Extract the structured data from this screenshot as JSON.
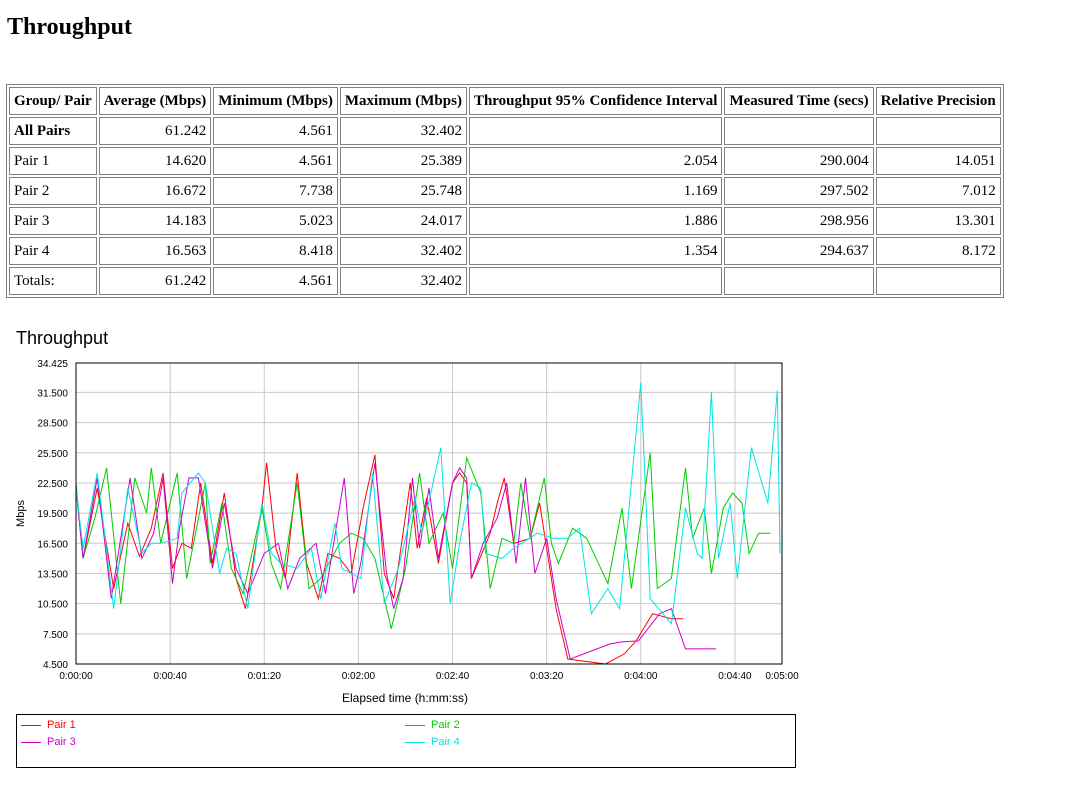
{
  "page": {
    "title": "Throughput"
  },
  "table": {
    "headers": [
      "Group/ Pair",
      "Average (Mbps)",
      "Minimum (Mbps)",
      "Maximum (Mbps)",
      "Throughput 95% Confidence Interval",
      "Measured Time (secs)",
      "Relative Precision"
    ],
    "rows": [
      [
        "All Pairs",
        "61.242",
        "4.561",
        "32.402",
        "",
        "",
        ""
      ],
      [
        "Pair 1",
        "14.620",
        "4.561",
        "25.389",
        "2.054",
        "290.004",
        "14.051"
      ],
      [
        "Pair 2",
        "16.672",
        "7.738",
        "25.748",
        "1.169",
        "297.502",
        "7.012"
      ],
      [
        "Pair 3",
        "14.183",
        "5.023",
        "24.017",
        "1.886",
        "298.956",
        "13.301"
      ],
      [
        "Pair 4",
        "16.563",
        "8.418",
        "32.402",
        "1.354",
        "294.637",
        "8.172"
      ],
      [
        "Totals:",
        "61.242",
        "4.561",
        "32.402",
        "",
        "",
        ""
      ]
    ]
  },
  "chart_data": {
    "type": "line",
    "title": "Throughput",
    "xlabel": "Elapsed time (h:mm:ss)",
    "ylabel": "Mbps",
    "x_unit": "seconds",
    "xlim": [
      0,
      300
    ],
    "ylim": [
      4.5,
      34.425
    ],
    "x_ticks": [
      0,
      40,
      80,
      120,
      160,
      200,
      240,
      280,
      300
    ],
    "x_tick_labels": [
      "0:00:00",
      "0:00:40",
      "0:01:20",
      "0:02:00",
      "0:02:40",
      "0:03:20",
      "0:04:00",
      "0:04:40",
      "0:05:00"
    ],
    "y_ticks": [
      4.5,
      7.5,
      10.5,
      13.5,
      16.5,
      19.5,
      22.5,
      25.5,
      28.5,
      31.5,
      34.425
    ],
    "y_tick_labels": [
      "4.500",
      "7.500",
      "10.500",
      "13.500",
      "16.500",
      "19.500",
      "22.500",
      "25.500",
      "28.500",
      "31.500",
      "34.425"
    ],
    "grid": true,
    "legend_position": "bottom",
    "series": [
      {
        "name": "Pair 1",
        "color": "#ff0000",
        "points": [
          [
            0,
            22
          ],
          [
            3,
            15
          ],
          [
            9,
            22
          ],
          [
            16,
            12
          ],
          [
            22,
            18.5
          ],
          [
            27,
            15.2
          ],
          [
            32,
            18
          ],
          [
            37,
            23.5
          ],
          [
            41,
            14
          ],
          [
            45,
            16.5
          ],
          [
            49,
            16
          ],
          [
            53,
            22.5
          ],
          [
            58,
            14.5
          ],
          [
            63,
            21.5
          ],
          [
            68,
            13
          ],
          [
            72,
            10
          ],
          [
            79,
            20
          ],
          [
            81,
            24.5
          ],
          [
            85,
            16
          ],
          [
            89,
            13
          ],
          [
            94,
            23.5
          ],
          [
            98,
            14.5
          ],
          [
            103,
            11
          ],
          [
            107,
            15.5
          ],
          [
            112,
            15
          ],
          [
            117,
            13.5
          ],
          [
            122,
            20
          ],
          [
            127,
            25.3
          ],
          [
            131,
            13.5
          ],
          [
            135,
            11
          ],
          [
            142,
            22.5
          ],
          [
            145,
            16
          ],
          [
            149,
            21
          ],
          [
            154,
            14.5
          ],
          [
            160,
            22.5
          ],
          [
            163,
            23.5
          ],
          [
            166,
            22.5
          ],
          [
            168,
            13
          ],
          [
            176,
            17.5
          ],
          [
            179,
            20.5
          ],
          [
            182,
            23
          ],
          [
            186,
            16.5
          ],
          [
            193,
            17
          ],
          [
            197,
            20.5
          ],
          [
            204,
            10
          ],
          [
            209,
            5
          ],
          [
            225,
            4.5
          ],
          [
            233,
            5.5
          ],
          [
            238,
            6.8
          ],
          [
            245,
            9.5
          ],
          [
            253,
            9
          ],
          [
            258,
            9
          ]
        ]
      },
      {
        "name": "Pair 2",
        "color": "#00cc00",
        "points": [
          [
            0,
            22.5
          ],
          [
            3,
            15
          ],
          [
            8,
            19
          ],
          [
            13,
            24
          ],
          [
            19,
            10.5
          ],
          [
            25,
            23
          ],
          [
            30,
            19.5
          ],
          [
            32,
            24
          ],
          [
            36,
            16.5
          ],
          [
            43,
            23.5
          ],
          [
            47,
            13
          ],
          [
            55,
            22.5
          ],
          [
            57,
            14.5
          ],
          [
            62,
            20.5
          ],
          [
            66,
            14
          ],
          [
            71,
            11.5
          ],
          [
            79,
            20
          ],
          [
            83,
            14.5
          ],
          [
            87,
            12
          ],
          [
            94,
            22.5
          ],
          [
            99,
            12
          ],
          [
            104,
            13
          ],
          [
            112,
            16.5
          ],
          [
            117,
            17.5
          ],
          [
            122,
            17
          ],
          [
            127,
            15
          ],
          [
            134,
            8
          ],
          [
            140,
            14
          ],
          [
            146,
            23.5
          ],
          [
            150,
            16.5
          ],
          [
            156,
            19.5
          ],
          [
            160,
            14
          ],
          [
            166,
            25
          ],
          [
            172,
            21.5
          ],
          [
            176,
            12
          ],
          [
            181,
            17
          ],
          [
            186,
            16.5
          ],
          [
            189,
            22.5
          ],
          [
            193,
            17
          ],
          [
            199,
            23
          ],
          [
            202,
            16.5
          ],
          [
            205,
            14.5
          ],
          [
            211,
            18
          ],
          [
            217,
            17
          ],
          [
            223,
            14
          ],
          [
            226,
            12.5
          ],
          [
            232,
            20
          ],
          [
            236,
            12
          ],
          [
            244,
            25.5
          ],
          [
            247,
            12
          ],
          [
            253,
            13
          ],
          [
            259,
            24
          ],
          [
            262,
            17
          ],
          [
            267,
            20
          ],
          [
            270,
            13.5
          ],
          [
            275,
            20
          ],
          [
            279,
            21.5
          ],
          [
            283,
            20.5
          ],
          [
            286,
            15.5
          ],
          [
            290,
            17.5
          ],
          [
            295,
            17.5
          ]
        ]
      },
      {
        "name": "Pair 3",
        "color": "#cc00cc",
        "points": [
          [
            0,
            22
          ],
          [
            3,
            15
          ],
          [
            9,
            23
          ],
          [
            15,
            11
          ],
          [
            23,
            23
          ],
          [
            28,
            15
          ],
          [
            33,
            17.5
          ],
          [
            37,
            23
          ],
          [
            41,
            12.5
          ],
          [
            44,
            18
          ],
          [
            48,
            23
          ],
          [
            52,
            23
          ],
          [
            58,
            14
          ],
          [
            63,
            20.5
          ],
          [
            68,
            14
          ],
          [
            73,
            11.5
          ],
          [
            80,
            15.5
          ],
          [
            86,
            16.5
          ],
          [
            90,
            12
          ],
          [
            95,
            15
          ],
          [
            102,
            16.5
          ],
          [
            106,
            11.5
          ],
          [
            114,
            23
          ],
          [
            118,
            11.5
          ],
          [
            121,
            14.5
          ],
          [
            127,
            24.5
          ],
          [
            132,
            13.5
          ],
          [
            135,
            10
          ],
          [
            139,
            13
          ],
          [
            143,
            23
          ],
          [
            146,
            16
          ],
          [
            150,
            22
          ],
          [
            154,
            15
          ],
          [
            160,
            22.5
          ],
          [
            163,
            24
          ],
          [
            166,
            23
          ],
          [
            168,
            13
          ],
          [
            173,
            16.5
          ],
          [
            179,
            19
          ],
          [
            183,
            22.5
          ],
          [
            187,
            14.5
          ],
          [
            191,
            23
          ],
          [
            195,
            13.5
          ],
          [
            200,
            17
          ],
          [
            204,
            11
          ],
          [
            210,
            5
          ],
          [
            227,
            6.5
          ],
          [
            232,
            6.7
          ],
          [
            239,
            6.8
          ],
          [
            248,
            9.5
          ],
          [
            253,
            10
          ],
          [
            259,
            6
          ],
          [
            272,
            6
          ]
        ]
      },
      {
        "name": "Pair 4",
        "color": "#00e5e5",
        "points": [
          [
            0,
            22
          ],
          [
            3,
            16
          ],
          [
            9,
            23.5
          ],
          [
            16,
            10
          ],
          [
            22,
            22
          ],
          [
            28,
            15.5
          ],
          [
            32,
            16.5
          ],
          [
            36,
            16.5
          ],
          [
            43,
            17
          ],
          [
            45,
            21.5
          ],
          [
            52,
            23.5
          ],
          [
            55,
            22.5
          ],
          [
            61,
            13.5
          ],
          [
            64,
            16
          ],
          [
            68,
            15.5
          ],
          [
            73,
            10
          ],
          [
            79,
            20.5
          ],
          [
            83,
            15.5
          ],
          [
            87,
            14.5
          ],
          [
            94,
            14
          ],
          [
            100,
            16
          ],
          [
            104,
            11
          ],
          [
            110,
            18.5
          ],
          [
            113,
            14
          ],
          [
            121,
            13
          ],
          [
            126,
            23.5
          ],
          [
            131,
            10.5
          ],
          [
            137,
            14
          ],
          [
            144,
            21
          ],
          [
            147,
            17.5
          ],
          [
            155,
            26
          ],
          [
            159,
            10.5
          ],
          [
            163,
            16.5
          ],
          [
            168,
            22.5
          ],
          [
            172,
            22
          ],
          [
            174,
            15.5
          ],
          [
            181,
            15
          ],
          [
            186,
            16
          ],
          [
            196,
            17.5
          ],
          [
            203,
            17
          ],
          [
            209,
            17
          ],
          [
            214,
            18
          ],
          [
            219,
            9.5
          ],
          [
            226,
            12
          ],
          [
            231,
            10
          ],
          [
            240,
            32.5
          ],
          [
            244,
            11
          ],
          [
            253,
            8.5
          ],
          [
            259,
            20
          ],
          [
            264,
            15.5
          ],
          [
            266,
            15
          ],
          [
            270,
            31.5
          ],
          [
            273,
            15
          ],
          [
            278,
            20.5
          ],
          [
            281,
            13
          ],
          [
            287,
            26
          ],
          [
            294,
            20.5
          ],
          [
            298,
            31.7
          ],
          [
            300,
            15.5
          ],
          [
            304,
            15.5
          ]
        ]
      }
    ]
  }
}
